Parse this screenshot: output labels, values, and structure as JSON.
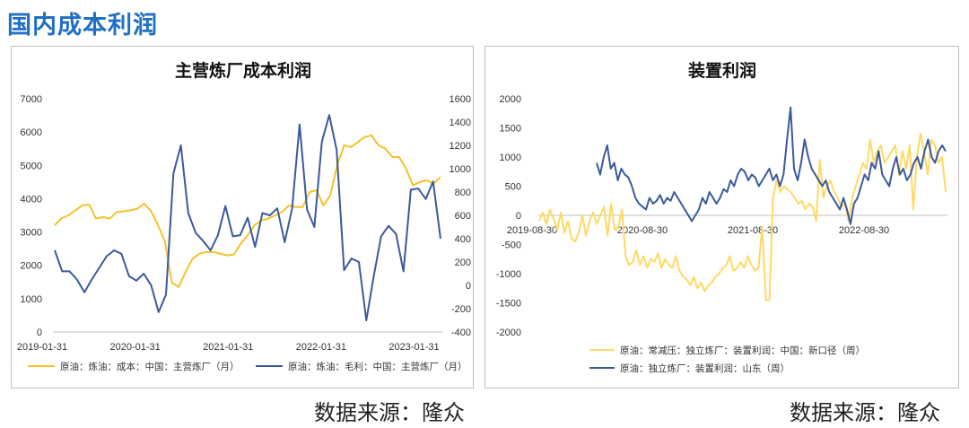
{
  "page": {
    "title": "国内成本利润"
  },
  "source_label_left": "数据来源：隆众",
  "source_label_right": "数据来源：隆众",
  "colors": {
    "title": "#1f6fc4",
    "yellow": "#f5c22d",
    "blue": "#3a5a9b",
    "lightyellow": "#ffd966"
  },
  "chart_data": [
    {
      "type": "line",
      "title": "主营炼厂成本利润",
      "x_ticks": [
        "2019-01-31",
        "2020-01-31",
        "2021-01-31",
        "2022-01-31",
        "2023-01-31"
      ],
      "y_left": {
        "ylim": [
          0,
          7000
        ],
        "ticks": [
          "0",
          "1000",
          "2000",
          "3000",
          "4000",
          "5000",
          "6000",
          "7000"
        ]
      },
      "y_right": {
        "ylim": [
          -400,
          1600
        ],
        "ticks": [
          "-400",
          "-200",
          "0",
          "200",
          "400",
          "600",
          "800",
          "1000",
          "1200",
          "1400",
          "1600"
        ]
      },
      "legend_position": "bottom",
      "series": [
        {
          "name": "原油：炼油：成本：中国：主营炼厂（月）",
          "axis": "left",
          "color": "#f5c22d",
          "values": [
            3200,
            3420,
            3500,
            3650,
            3800,
            3820,
            3400,
            3450,
            3400,
            3600,
            3620,
            3650,
            3700,
            3850,
            3620,
            3200,
            2700,
            1480,
            1350,
            1800,
            2200,
            2350,
            2400,
            2400,
            2350,
            2300,
            2320,
            2650,
            2900,
            3200,
            3350,
            3400,
            3500,
            3600,
            3800,
            3750,
            3750,
            4200,
            4250,
            3800,
            4100,
            5000,
            5600,
            5550,
            5700,
            5850,
            5900,
            5600,
            5500,
            5250,
            5250,
            4900,
            4400,
            4500,
            4550,
            4450,
            4650
          ]
        },
        {
          "name": "原油：炼油：毛利：中国：主营炼厂（月）",
          "axis": "right",
          "color": "#3a5a9b",
          "values": [
            300,
            120,
            120,
            50,
            -60,
            50,
            150,
            250,
            300,
            270,
            80,
            40,
            100,
            0,
            -230,
            -80,
            960,
            1200,
            620,
            450,
            380,
            300,
            430,
            680,
            420,
            430,
            580,
            330,
            620,
            600,
            660,
            370,
            660,
            1380,
            650,
            500,
            1230,
            1460,
            1160,
            130,
            230,
            200,
            -300,
            80,
            420,
            510,
            440,
            120,
            820,
            830,
            740,
            890,
            400
          ]
        }
      ]
    },
    {
      "type": "line",
      "title": "装置利润",
      "x_ticks": [
        "2019-08-30",
        "2020-08-30",
        "2021-08-30",
        "2022-08-30"
      ],
      "y": {
        "ylim": [
          -2000,
          2000
        ],
        "ticks": [
          "-2000",
          "-1500",
          "-1000",
          "-500",
          "0",
          "500",
          "1000",
          "1500",
          "2000"
        ]
      },
      "legend_position": "bottom",
      "series": [
        {
          "name": "原油：常减压：独立炼厂：装置利润：中国：新口径（周）",
          "color": "#ffd966",
          "values": [
            -100,
            50,
            -150,
            100,
            -50,
            -250,
            50,
            -300,
            -100,
            -400,
            -450,
            -300,
            0,
            -350,
            -100,
            50,
            -150,
            0,
            150,
            -350,
            200,
            -250,
            -200,
            100,
            -700,
            -850,
            -800,
            -600,
            -850,
            -700,
            -900,
            -750,
            -800,
            -650,
            -900,
            -750,
            -850,
            -900,
            -700,
            -950,
            -1050,
            -1100,
            -1200,
            -1050,
            -1250,
            -1150,
            -1300,
            -1200,
            -1150,
            -1050,
            -1000,
            -900,
            -850,
            -700,
            -950,
            -900,
            -800,
            -900,
            -700,
            -850,
            -950,
            -900,
            -200,
            -1450,
            -1450,
            300,
            600,
            400,
            500,
            450,
            400,
            300,
            200,
            250,
            100,
            200,
            150,
            -100,
            950,
            300,
            500,
            600,
            400,
            300,
            150,
            200,
            -100,
            300,
            500,
            700,
            900,
            800,
            1300,
            900,
            1100,
            1200,
            900,
            1000,
            1100,
            1200,
            700,
            1100,
            800,
            1200,
            100,
            1000,
            1400,
            1100,
            700,
            1300,
            1200,
            900,
            1000,
            400
          ]
        },
        {
          "name": "原油：独立炼厂：装置利润：山东（周）",
          "color": "#3a5a9b",
          "values": [
            900,
            700,
            1000,
            1200,
            800,
            900,
            600,
            800,
            700,
            650,
            500,
            300,
            200,
            150,
            100,
            300,
            200,
            250,
            350,
            200,
            300,
            250,
            400,
            300,
            200,
            100,
            0,
            -100,
            0,
            100,
            300,
            200,
            400,
            300,
            200,
            300,
            450,
            400,
            600,
            500,
            700,
            800,
            750,
            600,
            700,
            650,
            500,
            600,
            700,
            800,
            600,
            700,
            500,
            700,
            1300,
            1850,
            800,
            600,
            900,
            1300,
            1000,
            800,
            700,
            600,
            500,
            600,
            400,
            300,
            200,
            100,
            300,
            100,
            -150,
            200,
            300,
            500,
            700,
            600,
            900,
            800,
            1100,
            700,
            600,
            500,
            800,
            1000,
            700,
            800,
            600,
            700,
            900,
            1000,
            800,
            1100,
            1300,
            1000,
            900,
            1100,
            1200,
            1100
          ]
        }
      ]
    }
  ]
}
